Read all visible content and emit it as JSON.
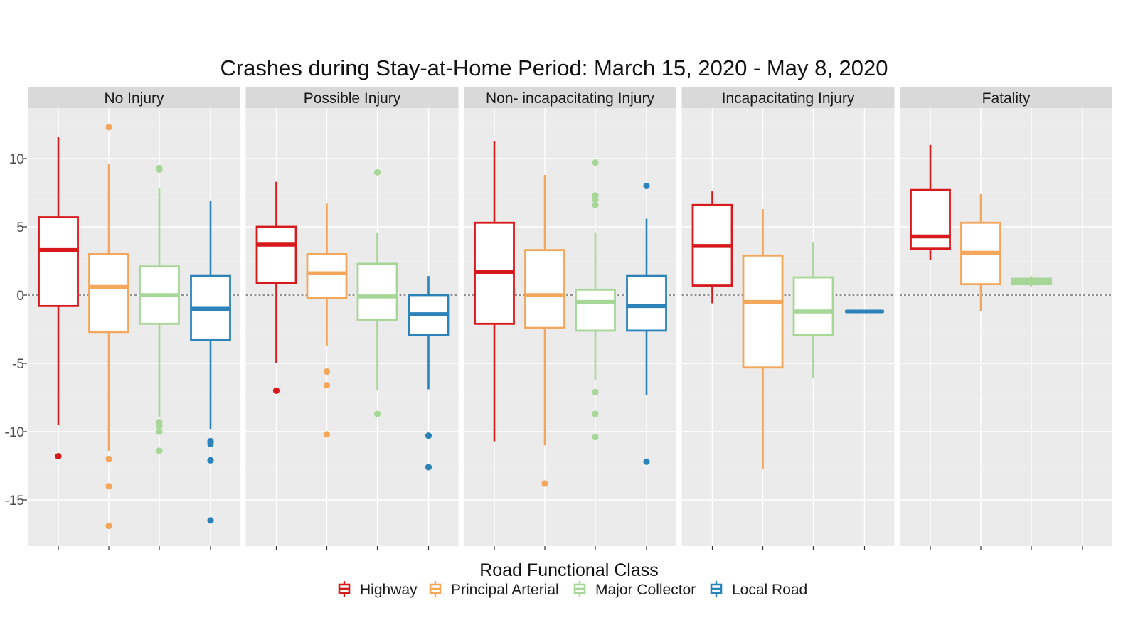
{
  "chart_data": {
    "type": "boxplot",
    "title": "Crashes during Stay-at-Home Period: March 15, 2020 - May 8, 2020",
    "xlabel": "Road Functional Class",
    "ylabel": "",
    "ylim": [
      -18,
      14
    ],
    "yticks": [
      10,
      5,
      0,
      -5,
      -10,
      -15
    ],
    "ytick_labels": [
      "10",
      "5",
      "0",
      "-5",
      "-10",
      "-15"
    ],
    "reference_line": 0,
    "grid": true,
    "legend_position": "bottom",
    "panels": [
      "No Injury",
      "Possible Injury",
      "Non- incapacitating Injury",
      "Incapacitating Injury",
      "Fatality"
    ],
    "series": [
      {
        "name": "Highway",
        "color": "#d7191c"
      },
      {
        "name": "Principal Arterial",
        "color": "#f4a65a"
      },
      {
        "name": "Major Collector",
        "color": "#a6d796"
      },
      {
        "name": "Local Road",
        "color": "#2b83ba"
      }
    ],
    "boxes": [
      [
        {
          "min": -9.5,
          "q1": -0.8,
          "median": 3.3,
          "q3": 5.7,
          "max": 11.6,
          "outliers": [
            -11.8
          ]
        },
        {
          "min": -11.4,
          "q1": -2.7,
          "median": 0.6,
          "q3": 3.0,
          "max": 9.6,
          "outliers": [
            12.3,
            -12.0,
            -14.0,
            -16.9
          ]
        },
        {
          "min": -8.9,
          "q1": -2.1,
          "median": 0.0,
          "q3": 2.1,
          "max": 7.8,
          "outliers": [
            9.3,
            9.2,
            -9.3,
            -9.6,
            -10.0,
            -11.4
          ]
        },
        {
          "min": -9.8,
          "q1": -3.3,
          "median": -1.0,
          "q3": 1.4,
          "max": 6.9,
          "outliers": [
            -10.7,
            -10.9,
            -12.1,
            -16.5
          ]
        }
      ],
      [
        {
          "min": -5.0,
          "q1": 0.9,
          "median": 3.7,
          "q3": 5.0,
          "max": 8.3,
          "outliers": [
            -7.0
          ]
        },
        {
          "min": -3.7,
          "q1": -0.2,
          "median": 1.6,
          "q3": 3.0,
          "max": 6.7,
          "outliers": [
            -5.6,
            -6.6,
            -10.2
          ]
        },
        {
          "min": -7.0,
          "q1": -1.8,
          "median": -0.1,
          "q3": 2.3,
          "max": 4.6,
          "outliers": [
            9.0,
            -8.7
          ]
        },
        {
          "min": -6.9,
          "q1": -2.9,
          "median": -1.4,
          "q3": 0.0,
          "max": 1.4,
          "outliers": [
            -10.3,
            -12.6
          ]
        }
      ],
      [
        {
          "min": -10.7,
          "q1": -2.1,
          "median": 1.7,
          "q3": 5.3,
          "max": 11.3,
          "outliers": []
        },
        {
          "min": -11.0,
          "q1": -2.4,
          "median": 0.0,
          "q3": 3.3,
          "max": 8.8,
          "outliers": [
            -13.8
          ]
        },
        {
          "min": -6.2,
          "q1": -2.6,
          "median": -0.5,
          "q3": 0.4,
          "max": 4.6,
          "outliers": [
            9.7,
            7.3,
            7.0,
            6.6,
            -7.1,
            -8.7,
            -10.4
          ]
        },
        {
          "min": -7.3,
          "q1": -2.6,
          "median": -0.8,
          "q3": 1.4,
          "max": 5.6,
          "outliers": [
            8.0,
            -12.2
          ]
        }
      ],
      [
        {
          "min": -0.6,
          "q1": 0.7,
          "median": 3.6,
          "q3": 6.6,
          "max": 7.6,
          "outliers": []
        },
        {
          "min": -12.7,
          "q1": -5.3,
          "median": -0.5,
          "q3": 2.9,
          "max": 6.3,
          "outliers": []
        },
        {
          "min": -6.1,
          "q1": -2.9,
          "median": -1.2,
          "q3": 1.3,
          "max": 3.9,
          "outliers": []
        },
        {
          "min": -1.2,
          "q1": -1.2,
          "median": -1.2,
          "q3": -1.2,
          "max": -1.2,
          "outliers": []
        }
      ],
      [
        {
          "min": 2.6,
          "q1": 3.4,
          "median": 4.3,
          "q3": 7.7,
          "max": 11.0,
          "outliers": []
        },
        {
          "min": -1.2,
          "q1": 0.8,
          "median": 3.1,
          "q3": 5.3,
          "max": 7.4,
          "outliers": []
        },
        {
          "min": 0.6,
          "q1": 0.8,
          "median": 1.0,
          "q3": 1.2,
          "max": 1.4,
          "outliers": []
        },
        null
      ]
    ]
  }
}
